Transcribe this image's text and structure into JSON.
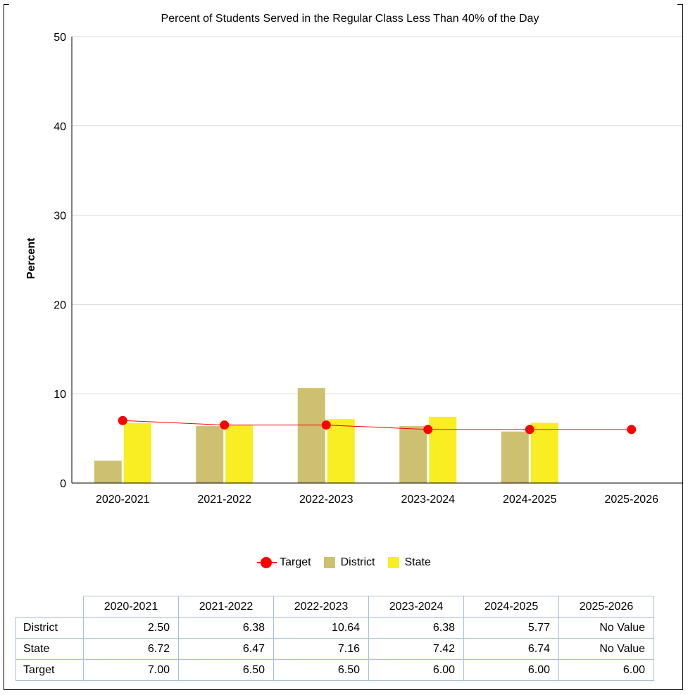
{
  "chart_data": {
    "type": "bar",
    "title": "Percent of Students Served in the Regular Class Less Than 40% of the Day",
    "ylabel": "Percent",
    "xlabel": "",
    "ylim": [
      0,
      50
    ],
    "yticks": [
      0,
      10,
      20,
      30,
      40,
      50
    ],
    "grid": true,
    "categories": [
      "2020-2021",
      "2021-2022",
      "2022-2023",
      "2023-2024",
      "2024-2025",
      "2025-2026"
    ],
    "series": [
      {
        "name": "District",
        "type": "bar",
        "color": "#cdc070",
        "values": [
          2.5,
          6.38,
          10.64,
          6.38,
          5.77,
          null
        ]
      },
      {
        "name": "State",
        "type": "bar",
        "color": "#f8ee22",
        "values": [
          6.72,
          6.47,
          7.16,
          7.42,
          6.74,
          null
        ]
      },
      {
        "name": "Target",
        "type": "line",
        "color": "#ff0000",
        "values": [
          7.0,
          6.5,
          6.5,
          6.0,
          6.0,
          6.0
        ]
      }
    ],
    "legend": [
      "Target",
      "District",
      "State"
    ],
    "legend_position": "bottom"
  },
  "table": {
    "headers": [
      "2020-2021",
      "2021-2022",
      "2022-2023",
      "2023-2024",
      "2024-2025",
      "2025-2026"
    ],
    "rows": [
      {
        "label": "District",
        "cells": [
          "2.50",
          "6.38",
          "10.64",
          "6.38",
          "5.77",
          "No Value"
        ]
      },
      {
        "label": "State",
        "cells": [
          "6.72",
          "6.47",
          "7.16",
          "7.42",
          "6.74",
          "No Value"
        ]
      },
      {
        "label": "Target",
        "cells": [
          "7.00",
          "6.50",
          "6.50",
          "6.00",
          "6.00",
          "6.00"
        ]
      }
    ]
  }
}
